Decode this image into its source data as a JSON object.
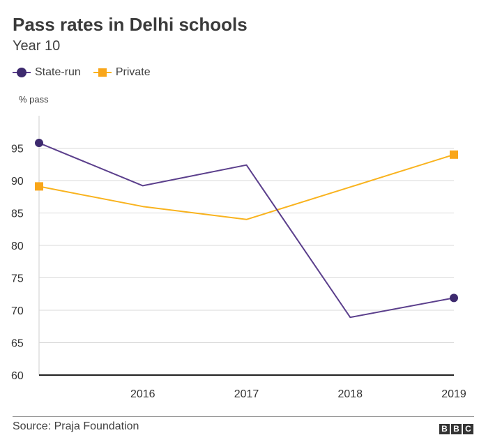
{
  "chart_data": {
    "type": "line",
    "title": "Pass rates in Delhi schools",
    "subtitle": "Year 10",
    "ylabel": "% pass",
    "xlabel": "",
    "ylim": [
      60,
      100
    ],
    "yticks": [
      60,
      65,
      70,
      75,
      80,
      85,
      90,
      95
    ],
    "x": [
      2015,
      2016,
      2017,
      2018,
      2019
    ],
    "xlim": [
      2015,
      2019
    ],
    "xtick_labels": [
      "2016",
      "2017",
      "2018",
      "2019"
    ],
    "grid": true,
    "legend_position": "top-left",
    "series": [
      {
        "name": "State-run",
        "values": [
          95.8,
          89.2,
          92.4,
          68.9,
          71.9
        ],
        "color": "#5b3f8c",
        "marker": "circle",
        "marker_color": "#3d2a6e"
      },
      {
        "name": "Private",
        "values": [
          89.1,
          86.0,
          84.0,
          89.0,
          94.0
        ],
        "color": "#f9b31e",
        "marker": "square",
        "marker_color": "#f9a61a"
      }
    ],
    "source": "Source: Praja Foundation"
  },
  "branding": {
    "logo_letters": [
      "B",
      "B",
      "C"
    ]
  }
}
